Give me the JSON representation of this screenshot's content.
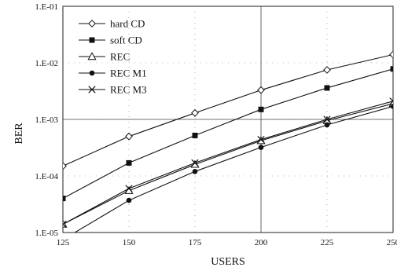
{
  "chart_data": {
    "type": "line",
    "title": "",
    "xlabel": "USERS",
    "ylabel": "BER",
    "x": [
      125,
      150,
      175,
      200,
      225,
      250
    ],
    "xlim": [
      125,
      250
    ],
    "ylim": [
      1e-05,
      0.1
    ],
    "yscale": "log",
    "x_tick_labels": [
      "125",
      "150",
      "175",
      "200",
      "225",
      "250"
    ],
    "y_tick_labels": [
      "1.E-05",
      "1.E-04",
      "1.E-03",
      "1.E-02",
      "1.E-01"
    ],
    "y_tick_values": [
      1e-05,
      0.0001,
      0.001,
      0.01,
      0.1
    ],
    "grid": "dashed",
    "legend_position": "top-left",
    "series": [
      {
        "name": "hard CD",
        "marker": "diamond-open",
        "values": [
          0.00015,
          0.0005,
          0.0013,
          0.0033,
          0.0075,
          0.014
        ]
      },
      {
        "name": "soft CD",
        "marker": "square-filled",
        "values": [
          4e-05,
          0.00017,
          0.00052,
          0.0015,
          0.0036,
          0.0078
        ]
      },
      {
        "name": "REC",
        "marker": "triangle-open",
        "values": [
          1.4e-05,
          5.5e-05,
          0.00016,
          0.00042,
          0.00095,
          0.0019
        ]
      },
      {
        "name": "REC M1",
        "marker": "circle-filled",
        "values": [
          7.5e-06,
          3.7e-05,
          0.00012,
          0.00032,
          0.0008,
          0.0017
        ]
      },
      {
        "name": "REC M3",
        "marker": "x",
        "values": [
          1.4e-05,
          6e-05,
          0.00017,
          0.00044,
          0.001,
          0.0021
        ]
      }
    ]
  }
}
